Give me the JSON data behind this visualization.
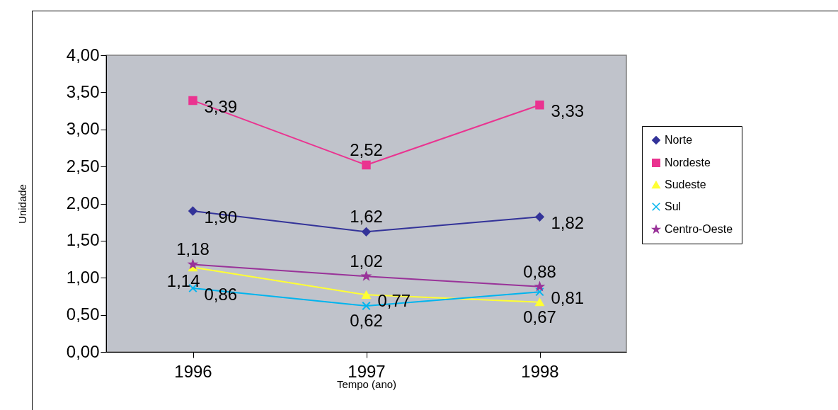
{
  "chart_data": {
    "type": "line",
    "xlabel": "Tempo (ano)",
    "ylabel": "Unidade",
    "categories": [
      "1996",
      "1997",
      "1998"
    ],
    "ylim": [
      0,
      4
    ],
    "yticks": [
      {
        "value": 0,
        "label": "0,00"
      },
      {
        "value": 0.5,
        "label": "0,50"
      },
      {
        "value": 1,
        "label": "1,00"
      },
      {
        "value": 1.5,
        "label": "1,50"
      },
      {
        "value": 2,
        "label": "2,00"
      },
      {
        "value": 2.5,
        "label": "2,50"
      },
      {
        "value": 3,
        "label": "3,00"
      },
      {
        "value": 3.5,
        "label": "3,50"
      },
      {
        "value": 4,
        "label": "4,00"
      }
    ],
    "grid": false,
    "legend": "right",
    "data_labels": true,
    "series": [
      {
        "name": "Norte",
        "color": "#333399",
        "marker": "diamond",
        "values": [
          1.9,
          1.62,
          1.82
        ],
        "value_labels": [
          "1,90",
          "1,62",
          "1,82"
        ]
      },
      {
        "name": "Nordeste",
        "color": "#ea3390",
        "marker": "square",
        "values": [
          3.39,
          2.52,
          3.33
        ],
        "value_labels": [
          "3,39",
          "2,52",
          "3,33"
        ]
      },
      {
        "name": "Sudeste",
        "color": "#ffff33",
        "marker": "triangle",
        "values": [
          1.14,
          0.77,
          0.67
        ],
        "value_labels": [
          "1,14",
          "0,77",
          "0,67"
        ]
      },
      {
        "name": "Sul",
        "color": "#00b4ee",
        "marker": "cross",
        "values": [
          0.86,
          0.62,
          0.81
        ],
        "value_labels": [
          "0,86",
          "0,62",
          "0,81"
        ]
      },
      {
        "name": "Centro-Oeste",
        "color": "#993399",
        "marker": "star",
        "values": [
          1.18,
          1.02,
          0.88
        ],
        "value_labels": [
          "1,18",
          "1,02",
          "0,88"
        ]
      }
    ]
  }
}
